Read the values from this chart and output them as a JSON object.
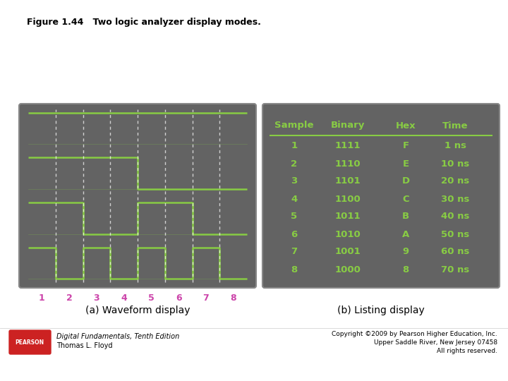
{
  "title": "Figure 1.44   Two logic analyzer display modes.",
  "bg_color": "#ffffff",
  "panel_bg": "#666666",
  "panel_bg2": "#5a5a5a",
  "green": "#88cc44",
  "green_light": "#99dd55",
  "pink": "#cc44aa",
  "white_dashed": "#cccccc",
  "label_a": "(a) Waveform display",
  "label_b": "(b) Listing display",
  "sample_numbers": [
    "1",
    "2",
    "3",
    "4",
    "5",
    "6",
    "7",
    "8"
  ],
  "table_headers": [
    "Sample",
    "Binary",
    "Hex",
    "Time"
  ],
  "table_data": [
    [
      "1",
      "1111",
      "F",
      "1 ns"
    ],
    [
      "2",
      "1110",
      "E",
      "10 ns"
    ],
    [
      "3",
      "1101",
      "D",
      "20 ns"
    ],
    [
      "4",
      "1100",
      "C",
      "30 ns"
    ],
    [
      "5",
      "1011",
      "B",
      "40 ns"
    ],
    [
      "6",
      "1010",
      "A",
      "50 ns"
    ],
    [
      "7",
      "1001",
      "9",
      "60 ns"
    ],
    [
      "8",
      "1000",
      "8",
      "70 ns"
    ]
  ],
  "footer_text1": "Digital Fundamentals, Tenth Edition",
  "footer_text2": "Thomas L. Floyd",
  "copyright1": "Copyright ©2009 by Pearson Higher Education, Inc.",
  "copyright2": "Upper Saddle River, New Jersey 07458",
  "copyright3": "All rights reserved.",
  "pearson_bg": "#cc2222"
}
